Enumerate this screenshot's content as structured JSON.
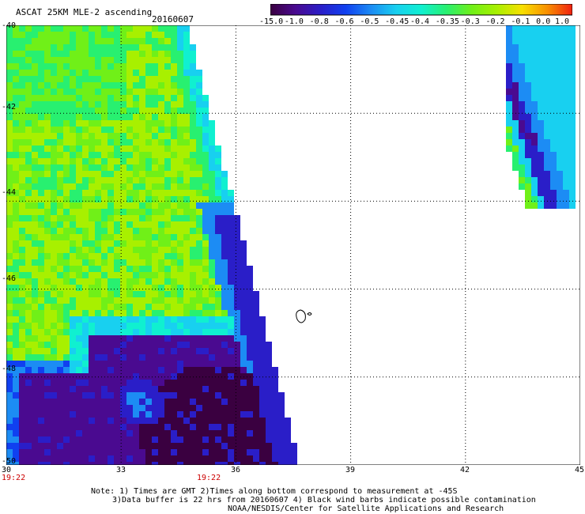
{
  "header": {
    "title": "ASCAT 25KM MLE-2 ascending",
    "date": "20160607"
  },
  "colorbar": {
    "labels": [
      "-15.0",
      "-1.0",
      "-0.8",
      "-0.6",
      "-0.5",
      "-0.45",
      "-0.4",
      "-0.35",
      "-0.3",
      "-0.2",
      "-0.1",
      "0.0",
      "1.0"
    ],
    "colors": [
      "#3a0040",
      "#4a0a90",
      "#2a1ec8",
      "#1040f0",
      "#1c8cf4",
      "#18d0f0",
      "#10f0d0",
      "#28f070",
      "#70f018",
      "#a8f000",
      "#f8e000",
      "#f89000",
      "#f02010"
    ]
  },
  "map": {
    "x_ticks": [
      "30",
      "33",
      "36",
      "39",
      "42",
      "45"
    ],
    "y_ticks": [
      "-40",
      "-42",
      "-44",
      "-46",
      "-48",
      "-50"
    ],
    "lon_range": [
      30,
      45
    ],
    "lat_range": [
      -50,
      -40
    ],
    "grid": true
  },
  "times": [
    "19:22",
    "19:22"
  ],
  "notes": [
    "Note: 1) Times are GMT 2)Times along bottom correspond to measurement at -45S",
    "3)Data buffer is 22 hrs from 20160607 4) Black wind barbs indicate possible contamination",
    "NOAA/NESDIS/Center for Satellite Applications and Research"
  ]
}
